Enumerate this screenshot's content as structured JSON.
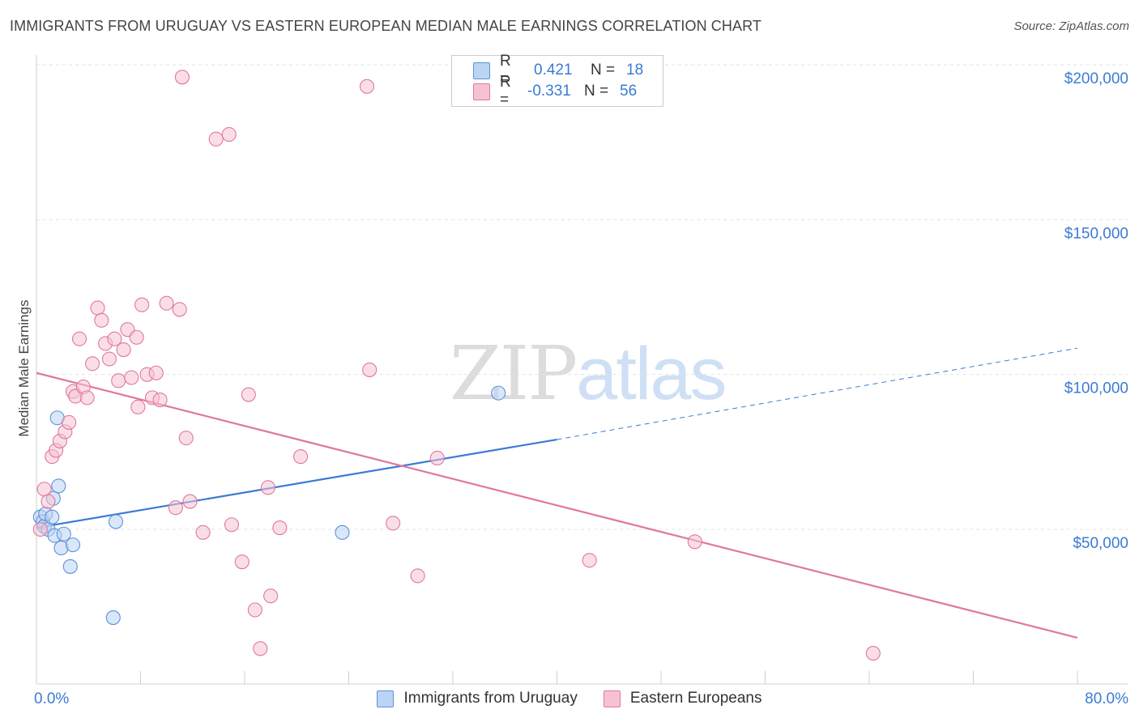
{
  "title": "IMMIGRANTS FROM URUGUAY VS EASTERN EUROPEAN MEDIAN MALE EARNINGS CORRELATION CHART",
  "source": "Source: ZipAtlas.com",
  "watermark": {
    "zip": "ZIP",
    "atlas": "atlas"
  },
  "legend": {
    "uruguay": {
      "r_label": "R =",
      "r_value": "0.421",
      "n_label": "N =",
      "n_value": "18"
    },
    "eastern": {
      "r_label": "R =",
      "r_value": "-0.331",
      "n_label": "N =",
      "n_value": "56"
    }
  },
  "bottom_legend": {
    "uruguay": "Immigrants from Uruguay",
    "eastern": "Eastern Europeans"
  },
  "colors": {
    "uruguay": "#5b93d8",
    "uruguay_fill": "#bcd4f3",
    "eastern": "#e0789c",
    "eastern_fill": "#f6c2d3",
    "accent": "#3a7bd5"
  },
  "chart_data": {
    "type": "scatter",
    "ylabel": "Median Male Earnings",
    "x_tick_labels": [
      "0.0%",
      "80.0%"
    ],
    "y_tick_labels": [
      "$50,000",
      "$100,000",
      "$150,000",
      "$200,000"
    ],
    "xlim": [
      0,
      80
    ],
    "ylim": [
      0,
      205000
    ],
    "series": [
      {
        "key": "uruguay",
        "name": "Immigrants from Uruguay",
        "points": [
          [
            0.3,
            54000
          ],
          [
            0.5,
            52500
          ],
          [
            0.6,
            51000
          ],
          [
            0.7,
            55000
          ],
          [
            0.9,
            50000
          ],
          [
            1.2,
            54000
          ],
          [
            1.3,
            60000
          ],
          [
            1.4,
            48000
          ],
          [
            1.6,
            86000
          ],
          [
            1.7,
            64000
          ],
          [
            1.9,
            44000
          ],
          [
            2.1,
            48500
          ],
          [
            2.6,
            38000
          ],
          [
            2.8,
            45000
          ],
          [
            5.9,
            21500
          ],
          [
            6.1,
            52500
          ],
          [
            23.5,
            49000
          ],
          [
            35.5,
            94000
          ]
        ],
        "trend": {
          "x0": 0,
          "y0": 50500,
          "x1": 40,
          "y1": 79000,
          "dash_to_x": 80,
          "dash_to_y": 108500
        }
      },
      {
        "key": "eastern",
        "name": "Eastern Europeans",
        "points": [
          [
            0.3,
            50000
          ],
          [
            0.6,
            63000
          ],
          [
            0.9,
            59000
          ],
          [
            1.2,
            73500
          ],
          [
            1.5,
            75500
          ],
          [
            1.8,
            78500
          ],
          [
            2.2,
            81500
          ],
          [
            2.5,
            84500
          ],
          [
            2.8,
            94500
          ],
          [
            3.0,
            93000
          ],
          [
            3.3,
            111500
          ],
          [
            3.6,
            96000
          ],
          [
            3.9,
            92500
          ],
          [
            4.3,
            103500
          ],
          [
            4.7,
            121500
          ],
          [
            5.0,
            117500
          ],
          [
            5.3,
            110000
          ],
          [
            5.6,
            105000
          ],
          [
            6.0,
            111500
          ],
          [
            6.3,
            98000
          ],
          [
            6.7,
            108000
          ],
          [
            7.0,
            114500
          ],
          [
            7.3,
            99000
          ],
          [
            7.7,
            112000
          ],
          [
            7.8,
            89500
          ],
          [
            8.1,
            122500
          ],
          [
            8.5,
            100000
          ],
          [
            8.9,
            92500
          ],
          [
            9.2,
            100500
          ],
          [
            9.5,
            91800
          ],
          [
            10.0,
            123000
          ],
          [
            10.7,
            57000
          ],
          [
            11.0,
            121000
          ],
          [
            11.5,
            79500
          ],
          [
            11.8,
            59000
          ],
          [
            12.8,
            49000
          ],
          [
            11.2,
            196000
          ],
          [
            13.8,
            176000
          ],
          [
            14.8,
            177500
          ],
          [
            15.0,
            51500
          ],
          [
            15.8,
            39500
          ],
          [
            16.3,
            93500
          ],
          [
            16.8,
            24000
          ],
          [
            17.2,
            11500
          ],
          [
            17.8,
            63500
          ],
          [
            18.0,
            28500
          ],
          [
            18.7,
            50500
          ],
          [
            20.3,
            73500
          ],
          [
            25.4,
            193000
          ],
          [
            25.6,
            101500
          ],
          [
            27.4,
            52000
          ],
          [
            29.3,
            35000
          ],
          [
            30.8,
            73000
          ],
          [
            42.5,
            40000
          ],
          [
            50.6,
            46000
          ],
          [
            64.3,
            10000
          ]
        ],
        "trend": {
          "x0": 0,
          "y0": 100500,
          "x1": 80,
          "y1": 15000
        }
      }
    ],
    "grid": true,
    "legend_position": "top-center"
  }
}
